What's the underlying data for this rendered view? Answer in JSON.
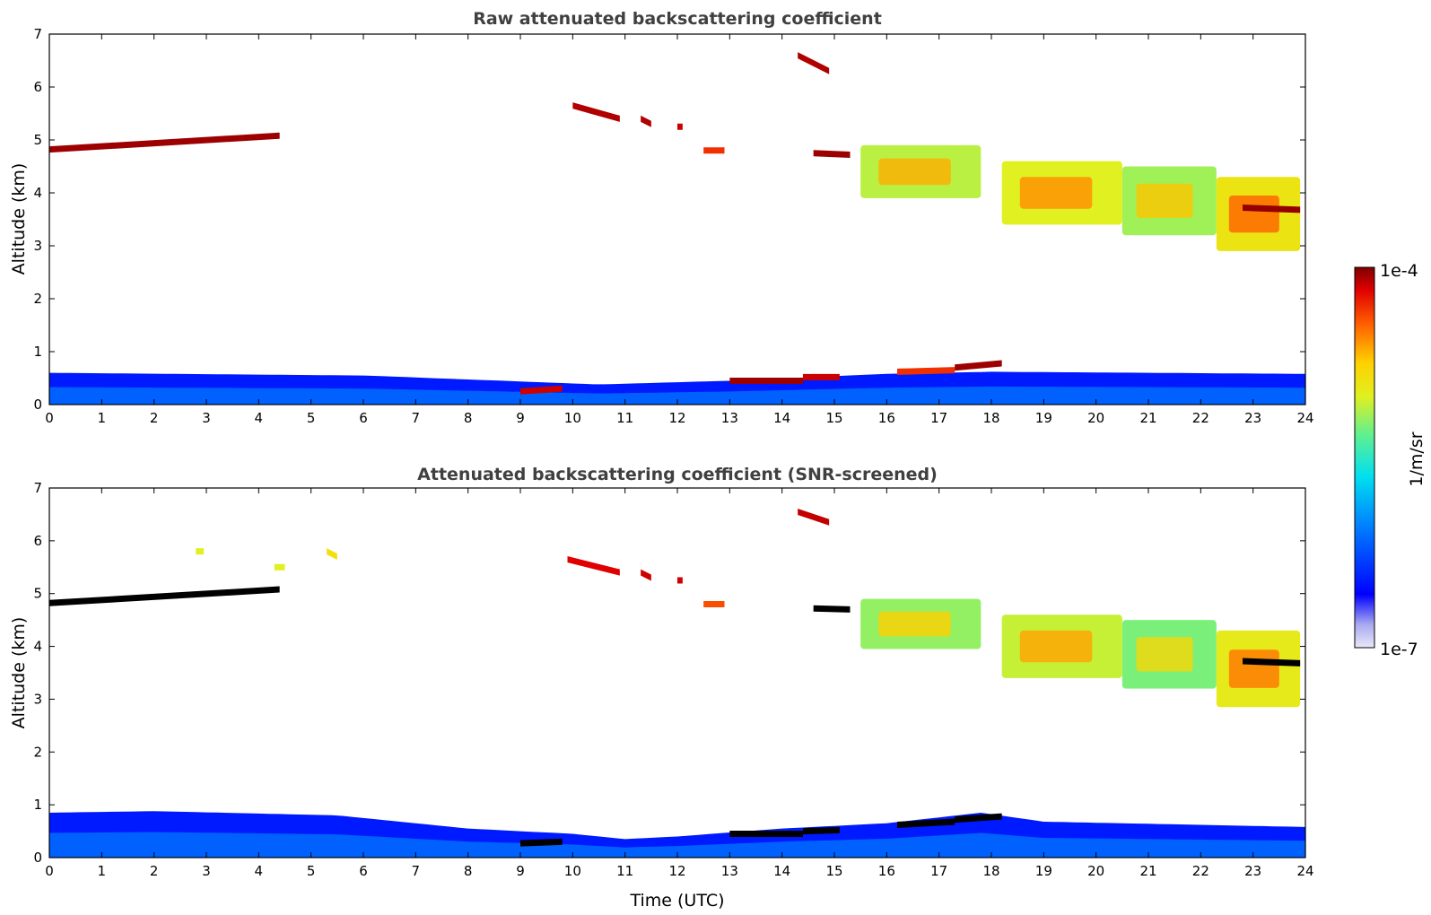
{
  "chart_data": [
    {
      "type": "heatmap",
      "title": "Raw attenuated backscattering coefficient",
      "xlabel": "",
      "ylabel": "Altitude (km)",
      "xlim": [
        0,
        24
      ],
      "ylim": [
        0,
        7
      ],
      "x_ticks": [
        "0",
        "1",
        "2",
        "3",
        "4",
        "5",
        "6",
        "7",
        "8",
        "9",
        "10",
        "11",
        "12",
        "13",
        "14",
        "15",
        "16",
        "17",
        "18",
        "19",
        "20",
        "21",
        "22",
        "23",
        "24"
      ],
      "y_ticks": [
        "0",
        "1",
        "2",
        "3",
        "4",
        "5",
        "6",
        "7"
      ],
      "features": [
        {
          "t0": 0.0,
          "t1": 4.4,
          "alt0": 4.82,
          "alt1": 5.08,
          "level": 0.97
        },
        {
          "t0": 9.0,
          "t1": 9.8,
          "alt0": 0.25,
          "alt1": 0.3,
          "level": 0.92
        },
        {
          "t0": 10.0,
          "t1": 10.9,
          "alt0": 5.65,
          "alt1": 5.4,
          "level": 0.95
        },
        {
          "t0": 11.3,
          "t1": 11.5,
          "alt0": 5.4,
          "alt1": 5.3,
          "level": 0.95
        },
        {
          "t0": 12.0,
          "t1": 12.1,
          "alt0": 5.25,
          "alt1": 5.25,
          "level": 0.92
        },
        {
          "t0": 12.5,
          "t1": 12.9,
          "alt0": 4.8,
          "alt1": 4.8,
          "level": 0.85
        },
        {
          "t0": 14.3,
          "t1": 14.9,
          "alt0": 6.6,
          "alt1": 6.3,
          "level": 0.95
        },
        {
          "t0": 14.6,
          "t1": 15.3,
          "alt0": 4.75,
          "alt1": 4.72,
          "level": 0.97
        },
        {
          "t0": 13.0,
          "t1": 14.4,
          "alt0": 0.45,
          "alt1": 0.45,
          "level": 0.97
        },
        {
          "t0": 14.4,
          "t1": 15.1,
          "alt0": 0.52,
          "alt1": 0.52,
          "level": 0.92
        },
        {
          "t0": 16.2,
          "t1": 17.3,
          "alt0": 0.62,
          "alt1": 0.65,
          "level": 0.85
        },
        {
          "t0": 17.3,
          "t1": 18.2,
          "alt0": 0.7,
          "alt1": 0.78,
          "level": 0.97
        },
        {
          "t0": 22.8,
          "t1": 23.9,
          "alt0": 3.72,
          "alt1": 3.68,
          "level": 0.98
        }
      ],
      "aerosol_layers": [
        {
          "t0": 15.5,
          "t1": 17.8,
          "top": 4.9,
          "bottom": 3.9,
          "level": 0.65
        },
        {
          "t0": 18.2,
          "t1": 20.5,
          "top": 4.6,
          "bottom": 3.4,
          "level": 0.68
        },
        {
          "t0": 20.5,
          "t1": 22.3,
          "top": 4.5,
          "bottom": 3.2,
          "level": 0.63
        },
        {
          "t0": 22.3,
          "t1": 23.9,
          "top": 4.3,
          "bottom": 2.9,
          "level": 0.72
        }
      ],
      "boundary_layer": [
        {
          "t": 0,
          "top": 0.6
        },
        {
          "t": 6,
          "top": 0.55
        },
        {
          "t": 10.5,
          "top": 0.38
        },
        {
          "t": 13,
          "top": 0.45
        },
        {
          "t": 16,
          "top": 0.58
        },
        {
          "t": 18,
          "top": 0.62
        },
        {
          "t": 24,
          "top": 0.58
        }
      ]
    },
    {
      "type": "heatmap",
      "title": "Attenuated backscattering coefficient (SNR-screened)",
      "xlabel": "Time (UTC)",
      "ylabel": "Altitude (km)",
      "xlim": [
        0,
        24
      ],
      "ylim": [
        0,
        7
      ],
      "x_ticks": [
        "0",
        "1",
        "2",
        "3",
        "4",
        "5",
        "6",
        "7",
        "8",
        "9",
        "10",
        "11",
        "12",
        "13",
        "14",
        "15",
        "16",
        "17",
        "18",
        "19",
        "20",
        "21",
        "22",
        "23",
        "24"
      ],
      "y_ticks": [
        "0",
        "1",
        "2",
        "3",
        "4",
        "5",
        "6",
        "7"
      ],
      "saturated_color": "#000000",
      "features": [
        {
          "t0": 0.0,
          "t1": 4.4,
          "alt0": 4.82,
          "alt1": 5.08,
          "level": 1.0
        },
        {
          "t0": 2.8,
          "t1": 2.95,
          "alt0": 5.8,
          "alt1": 5.8,
          "level": 0.6
        },
        {
          "t0": 4.3,
          "t1": 4.5,
          "alt0": 5.5,
          "alt1": 5.5,
          "level": 0.6
        },
        {
          "t0": 5.3,
          "t1": 5.5,
          "alt0": 5.8,
          "alt1": 5.7,
          "level": 0.65
        },
        {
          "t0": 9.9,
          "t1": 10.9,
          "alt0": 5.65,
          "alt1": 5.4,
          "level": 0.9
        },
        {
          "t0": 11.3,
          "t1": 11.5,
          "alt0": 5.4,
          "alt1": 5.3,
          "level": 0.92
        },
        {
          "t0": 12.0,
          "t1": 12.1,
          "alt0": 5.25,
          "alt1": 5.25,
          "level": 0.92
        },
        {
          "t0": 12.5,
          "t1": 12.9,
          "alt0": 4.8,
          "alt1": 4.8,
          "level": 0.82
        },
        {
          "t0": 14.3,
          "t1": 14.9,
          "alt0": 6.55,
          "alt1": 6.35,
          "level": 0.93
        },
        {
          "t0": 14.6,
          "t1": 15.3,
          "alt0": 4.72,
          "alt1": 4.7,
          "level": 1.0
        },
        {
          "t0": 9.0,
          "t1": 9.8,
          "alt0": 0.27,
          "alt1": 0.3,
          "level": 1.0
        },
        {
          "t0": 13.0,
          "t1": 14.4,
          "alt0": 0.45,
          "alt1": 0.45,
          "level": 1.0
        },
        {
          "t0": 14.4,
          "t1": 15.1,
          "alt0": 0.5,
          "alt1": 0.52,
          "level": 1.0
        },
        {
          "t0": 16.2,
          "t1": 17.3,
          "alt0": 0.62,
          "alt1": 0.68,
          "level": 1.0
        },
        {
          "t0": 17.3,
          "t1": 18.2,
          "alt0": 0.72,
          "alt1": 0.78,
          "level": 1.0
        },
        {
          "t0": 22.8,
          "t1": 23.9,
          "alt0": 3.72,
          "alt1": 3.68,
          "level": 1.0
        }
      ],
      "aerosol_layers": [
        {
          "t0": 15.5,
          "t1": 17.8,
          "top": 4.9,
          "bottom": 3.95,
          "level": 0.62
        },
        {
          "t0": 18.2,
          "t1": 20.5,
          "top": 4.6,
          "bottom": 3.4,
          "level": 0.66
        },
        {
          "t0": 20.5,
          "t1": 22.3,
          "top": 4.5,
          "bottom": 3.2,
          "level": 0.6
        },
        {
          "t0": 22.3,
          "t1": 23.9,
          "top": 4.3,
          "bottom": 2.85,
          "level": 0.7
        }
      ],
      "boundary_layer": [
        {
          "t": 0,
          "top": 0.85
        },
        {
          "t": 2,
          "top": 0.88
        },
        {
          "t": 5.5,
          "top": 0.8
        },
        {
          "t": 8,
          "top": 0.55
        },
        {
          "t": 10,
          "top": 0.45
        },
        {
          "t": 11,
          "top": 0.35
        },
        {
          "t": 12,
          "top": 0.4
        },
        {
          "t": 14,
          "top": 0.55
        },
        {
          "t": 16,
          "top": 0.65
        },
        {
          "t": 17.8,
          "top": 0.85
        },
        {
          "t": 19,
          "top": 0.68
        },
        {
          "t": 24,
          "top": 0.58
        }
      ]
    }
  ],
  "colorbar": {
    "label": "1/m/sr",
    "max_label": "1e-4",
    "min_label": "1e-7",
    "scale": "log",
    "colormap": "jet",
    "colors": [
      "#e8e8f8",
      "#aaaaf0",
      "#0000ff",
      "#0080ff",
      "#00e0f0",
      "#60f090",
      "#e0f020",
      "#ffd000",
      "#ff6000",
      "#e00000",
      "#800000"
    ]
  }
}
